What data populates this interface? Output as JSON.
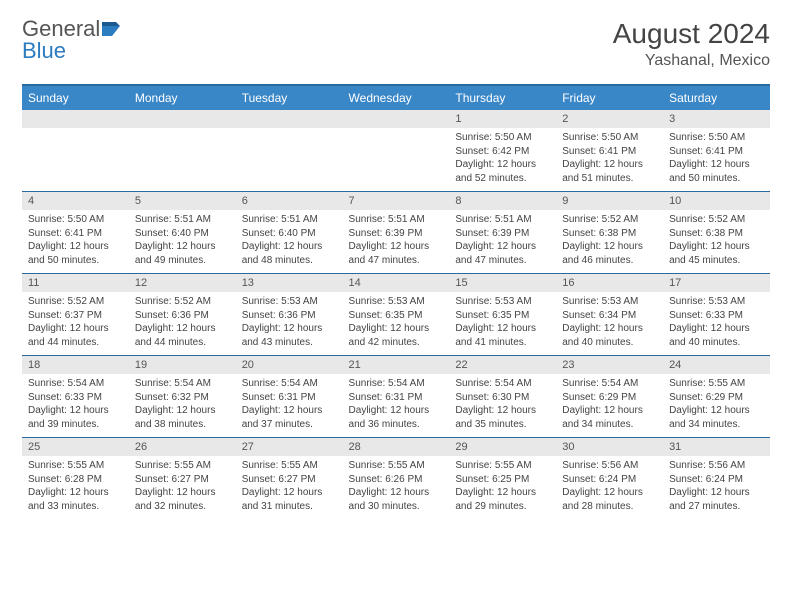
{
  "logo": {
    "text1": "General",
    "text2": "Blue"
  },
  "title": "August 2024",
  "location": "Yashanal, Mexico",
  "colors": {
    "header_bg": "#3a87c8",
    "header_text": "#ffffff",
    "row_border": "#2a6aa0",
    "daynum_bg": "#e8e8e8",
    "body_text": "#444444",
    "logo_gray": "#555555",
    "logo_blue": "#2b7cc0"
  },
  "weekdays": [
    "Sunday",
    "Monday",
    "Tuesday",
    "Wednesday",
    "Thursday",
    "Friday",
    "Saturday"
  ],
  "weeks": [
    [
      null,
      null,
      null,
      null,
      {
        "n": "1",
        "sr": "5:50 AM",
        "ss": "6:42 PM",
        "dl": "12 hours and 52 minutes."
      },
      {
        "n": "2",
        "sr": "5:50 AM",
        "ss": "6:41 PM",
        "dl": "12 hours and 51 minutes."
      },
      {
        "n": "3",
        "sr": "5:50 AM",
        "ss": "6:41 PM",
        "dl": "12 hours and 50 minutes."
      }
    ],
    [
      {
        "n": "4",
        "sr": "5:50 AM",
        "ss": "6:41 PM",
        "dl": "12 hours and 50 minutes."
      },
      {
        "n": "5",
        "sr": "5:51 AM",
        "ss": "6:40 PM",
        "dl": "12 hours and 49 minutes."
      },
      {
        "n": "6",
        "sr": "5:51 AM",
        "ss": "6:40 PM",
        "dl": "12 hours and 48 minutes."
      },
      {
        "n": "7",
        "sr": "5:51 AM",
        "ss": "6:39 PM",
        "dl": "12 hours and 47 minutes."
      },
      {
        "n": "8",
        "sr": "5:51 AM",
        "ss": "6:39 PM",
        "dl": "12 hours and 47 minutes."
      },
      {
        "n": "9",
        "sr": "5:52 AM",
        "ss": "6:38 PM",
        "dl": "12 hours and 46 minutes."
      },
      {
        "n": "10",
        "sr": "5:52 AM",
        "ss": "6:38 PM",
        "dl": "12 hours and 45 minutes."
      }
    ],
    [
      {
        "n": "11",
        "sr": "5:52 AM",
        "ss": "6:37 PM",
        "dl": "12 hours and 44 minutes."
      },
      {
        "n": "12",
        "sr": "5:52 AM",
        "ss": "6:36 PM",
        "dl": "12 hours and 44 minutes."
      },
      {
        "n": "13",
        "sr": "5:53 AM",
        "ss": "6:36 PM",
        "dl": "12 hours and 43 minutes."
      },
      {
        "n": "14",
        "sr": "5:53 AM",
        "ss": "6:35 PM",
        "dl": "12 hours and 42 minutes."
      },
      {
        "n": "15",
        "sr": "5:53 AM",
        "ss": "6:35 PM",
        "dl": "12 hours and 41 minutes."
      },
      {
        "n": "16",
        "sr": "5:53 AM",
        "ss": "6:34 PM",
        "dl": "12 hours and 40 minutes."
      },
      {
        "n": "17",
        "sr": "5:53 AM",
        "ss": "6:33 PM",
        "dl": "12 hours and 40 minutes."
      }
    ],
    [
      {
        "n": "18",
        "sr": "5:54 AM",
        "ss": "6:33 PM",
        "dl": "12 hours and 39 minutes."
      },
      {
        "n": "19",
        "sr": "5:54 AM",
        "ss": "6:32 PM",
        "dl": "12 hours and 38 minutes."
      },
      {
        "n": "20",
        "sr": "5:54 AM",
        "ss": "6:31 PM",
        "dl": "12 hours and 37 minutes."
      },
      {
        "n": "21",
        "sr": "5:54 AM",
        "ss": "6:31 PM",
        "dl": "12 hours and 36 minutes."
      },
      {
        "n": "22",
        "sr": "5:54 AM",
        "ss": "6:30 PM",
        "dl": "12 hours and 35 minutes."
      },
      {
        "n": "23",
        "sr": "5:54 AM",
        "ss": "6:29 PM",
        "dl": "12 hours and 34 minutes."
      },
      {
        "n": "24",
        "sr": "5:55 AM",
        "ss": "6:29 PM",
        "dl": "12 hours and 34 minutes."
      }
    ],
    [
      {
        "n": "25",
        "sr": "5:55 AM",
        "ss": "6:28 PM",
        "dl": "12 hours and 33 minutes."
      },
      {
        "n": "26",
        "sr": "5:55 AM",
        "ss": "6:27 PM",
        "dl": "12 hours and 32 minutes."
      },
      {
        "n": "27",
        "sr": "5:55 AM",
        "ss": "6:27 PM",
        "dl": "12 hours and 31 minutes."
      },
      {
        "n": "28",
        "sr": "5:55 AM",
        "ss": "6:26 PM",
        "dl": "12 hours and 30 minutes."
      },
      {
        "n": "29",
        "sr": "5:55 AM",
        "ss": "6:25 PM",
        "dl": "12 hours and 29 minutes."
      },
      {
        "n": "30",
        "sr": "5:56 AM",
        "ss": "6:24 PM",
        "dl": "12 hours and 28 minutes."
      },
      {
        "n": "31",
        "sr": "5:56 AM",
        "ss": "6:24 PM",
        "dl": "12 hours and 27 minutes."
      }
    ]
  ],
  "labels": {
    "sunrise": "Sunrise:",
    "sunset": "Sunset:",
    "daylight": "Daylight:"
  }
}
